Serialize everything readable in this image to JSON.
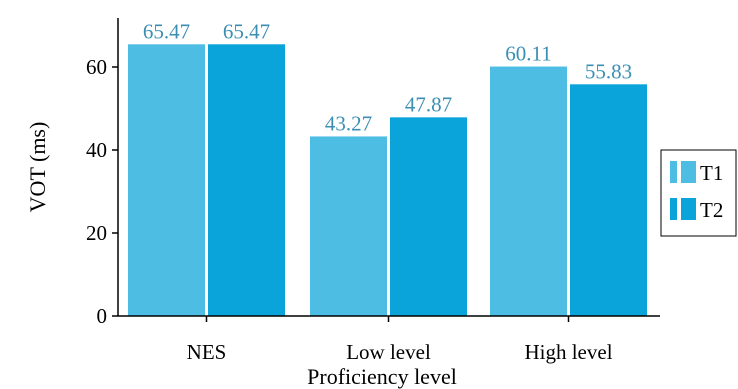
{
  "chart_data": {
    "type": "bar",
    "title": "",
    "xlabel": "Proficiency level",
    "ylabel": "VOT (ms)",
    "categories": [
      "NES",
      "Low level",
      "High level"
    ],
    "ylim": [
      0,
      70
    ],
    "yticks": [
      0,
      20,
      40,
      60
    ],
    "grid": false,
    "legend_position": "right",
    "series": [
      {
        "name": "T1",
        "values": [
          65.47,
          43.27,
          60.11
        ],
        "value_labels": [
          "65.47",
          "43.27",
          "60.11"
        ],
        "color": "#4dbde4"
      },
      {
        "name": "T2",
        "values": [
          65.47,
          47.87,
          55.83
        ],
        "value_labels": [
          "65.47",
          "47.87",
          "55.83"
        ],
        "color": "#0aa3da"
      }
    ],
    "value_label_color": "#3b8fb3"
  }
}
